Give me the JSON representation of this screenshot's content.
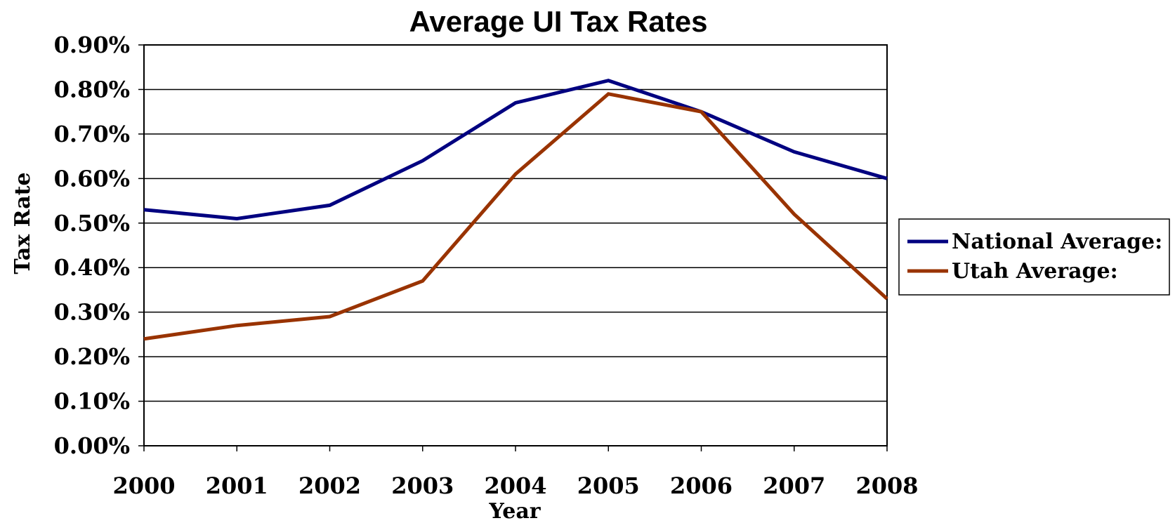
{
  "chart_data": {
    "type": "line",
    "title": "Average UI Tax Rates",
    "xlabel": "Year",
    "ylabel": "Tax Rate",
    "categories": [
      "2000",
      "2001",
      "2002",
      "2003",
      "2004",
      "2005",
      "2006",
      "2007",
      "2008"
    ],
    "ylim": [
      0,
      0.9
    ],
    "yticks": [
      0,
      0.1,
      0.2,
      0.3,
      0.4,
      0.5,
      0.6,
      0.7,
      0.8,
      0.9
    ],
    "ytick_labels": [
      "0.00%",
      "0.10%",
      "0.20%",
      "0.30%",
      "0.40%",
      "0.50%",
      "0.60%",
      "0.70%",
      "0.80%",
      "0.90%"
    ],
    "grid": true,
    "legend_position": "right",
    "series": [
      {
        "name": "National Average:",
        "color": "#000080",
        "values": [
          0.53,
          0.51,
          0.54,
          0.64,
          0.77,
          0.82,
          0.75,
          0.66,
          0.6
        ]
      },
      {
        "name": "Utah Average:",
        "color": "#993300",
        "values": [
          0.24,
          0.27,
          0.29,
          0.37,
          0.61,
          0.79,
          0.75,
          0.52,
          0.33
        ]
      }
    ]
  }
}
